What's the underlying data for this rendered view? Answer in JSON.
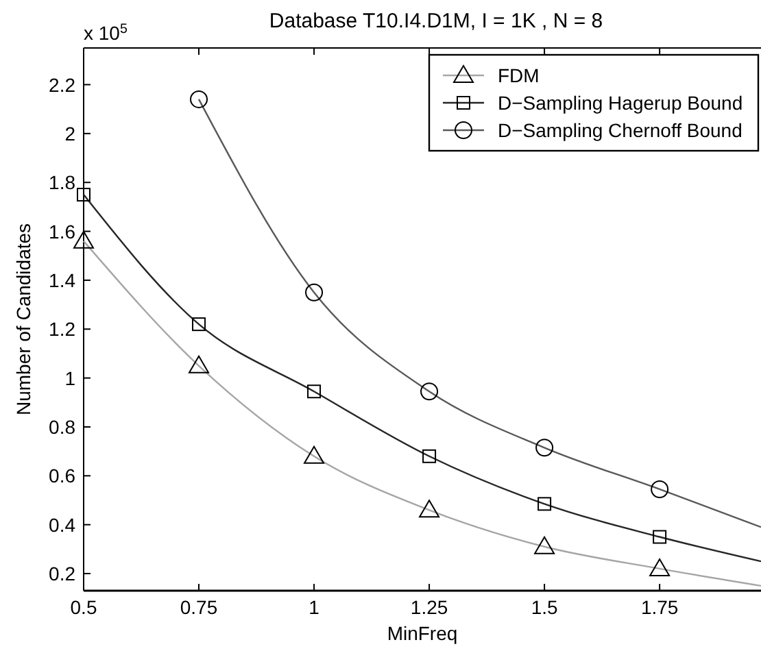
{
  "chart_data": {
    "type": "line",
    "title": "Database T10.I4.D1M, I = 1K , N = 8",
    "xlabel": "MinFreq",
    "ylabel": "Number of Candidates",
    "annotations": [
      "x 10$^{5}$"
    ],
    "xlim": [
      0.5,
      1.97
    ],
    "xticks": [
      0.5,
      0.75,
      1,
      1.25,
      1.5,
      1.75
    ],
    "ylim": [
      0.13,
      2.35
    ],
    "yticks": [
      0.2,
      0.4,
      0.6,
      0.8,
      1,
      1.2,
      1.4,
      1.6,
      1.8,
      2,
      2.2
    ],
    "grid": false,
    "legend": "top right",
    "line_style": "solid",
    "series": [
      {
        "name": "FDM",
        "color": "#a6a6a6",
        "marker": "triangle",
        "x": [
          0.5,
          0.75,
          1,
          1.25,
          1.5,
          1.75,
          1.97
        ],
        "values": [
          1.56,
          1.05,
          0.68,
          0.46,
          0.31,
          0.22,
          0.15
        ]
      },
      {
        "name": "D−Sampling Hagerup Bound",
        "color": "#262626",
        "marker": "square",
        "x": [
          0.5,
          0.75,
          1,
          1.25,
          1.5,
          1.75,
          1.97
        ],
        "values": [
          1.75,
          1.22,
          0.945,
          0.68,
          0.485,
          0.35,
          0.25
        ]
      },
      {
        "name": "D−Sampling Chernoff Bound",
        "color": "#595959",
        "marker": "circle",
        "x": [
          0.75,
          1,
          1.25,
          1.5,
          1.75,
          1.97
        ],
        "values": [
          2.14,
          1.35,
          0.945,
          0.715,
          0.545,
          0.39
        ]
      }
    ]
  }
}
